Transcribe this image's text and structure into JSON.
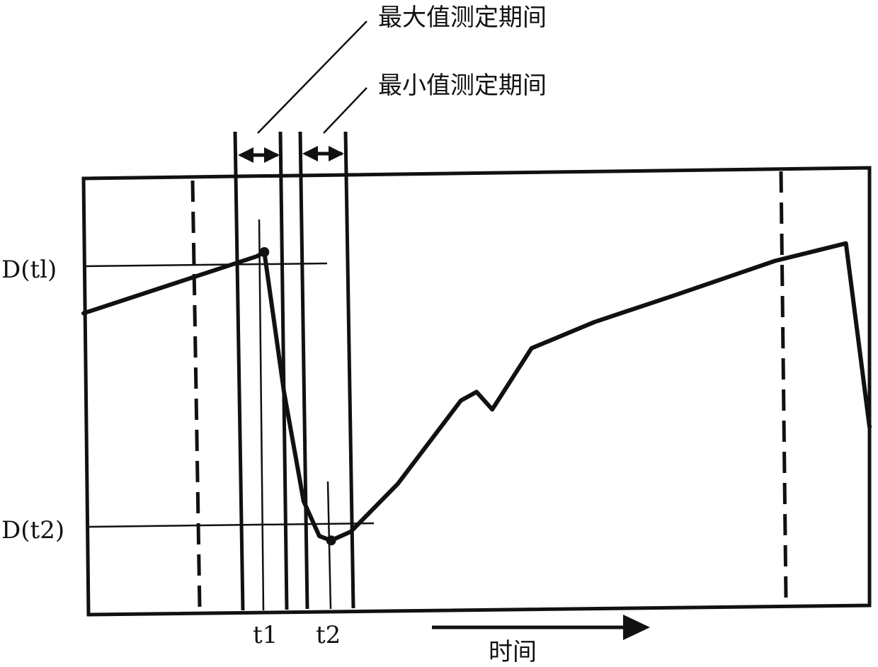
{
  "chart_data": {
    "type": "line",
    "x_axis_label": "时间",
    "annotations": {
      "max_period": "最大值测定期间",
      "min_period": "最小值测定期间"
    },
    "y_labels": {
      "d_t1": "D(tl)",
      "d_t2": "D(t2)"
    },
    "x_labels": {
      "t1": "t1",
      "t2": "t2"
    },
    "series": [
      {
        "points": [
          [
            0,
            0.68
          ],
          [
            0.22,
            0.81
          ],
          [
            0.23,
            0.82
          ],
          [
            0.255,
            0.5
          ],
          [
            0.28,
            0.25
          ],
          [
            0.3,
            0.17
          ],
          [
            0.315,
            0.16
          ],
          [
            0.34,
            0.18
          ],
          [
            0.4,
            0.29
          ],
          [
            0.48,
            0.48
          ],
          [
            0.5,
            0.5
          ],
          [
            0.52,
            0.46
          ],
          [
            0.57,
            0.6
          ],
          [
            0.65,
            0.66
          ],
          [
            0.75,
            0.72
          ],
          [
            0.88,
            0.8
          ],
          [
            0.97,
            0.84
          ],
          [
            1.0,
            0.42
          ]
        ]
      }
    ],
    "markers": {
      "max": {
        "x": 0.23,
        "y": 0.82
      },
      "min": {
        "x": 0.315,
        "y": 0.16
      }
    },
    "dashed_lines_x": [
      0.14,
      0.895
    ]
  }
}
